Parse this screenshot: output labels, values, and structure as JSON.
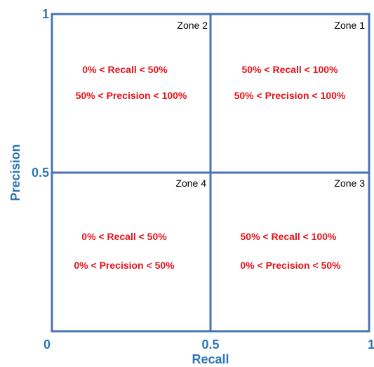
{
  "colors": {
    "axis_text": "#2E75B6",
    "grid_line": "#4A74B4",
    "condition_text": "#E8121A",
    "zone_label_text": "#000000"
  },
  "axes": {
    "x_title": "Recall",
    "y_title": "Precision",
    "x_ticks": [
      "0",
      "0.5",
      "1"
    ],
    "y_ticks": [
      "0.5",
      "1"
    ]
  },
  "zones": [
    {
      "name": "Zone 2",
      "recall": "0% < Recall < 50%",
      "precision": "50% < Precision < 100%"
    },
    {
      "name": "Zone 1",
      "recall": "50% < Recall < 100%",
      "precision": "50% < Precision < 100%"
    },
    {
      "name": "Zone 4",
      "recall": "0% < Recall < 50%",
      "precision": "0% < Precision < 50%"
    },
    {
      "name": "Zone 3",
      "recall": "50% < Recall < 100%",
      "precision": "0% < Precision < 50%"
    }
  ]
}
